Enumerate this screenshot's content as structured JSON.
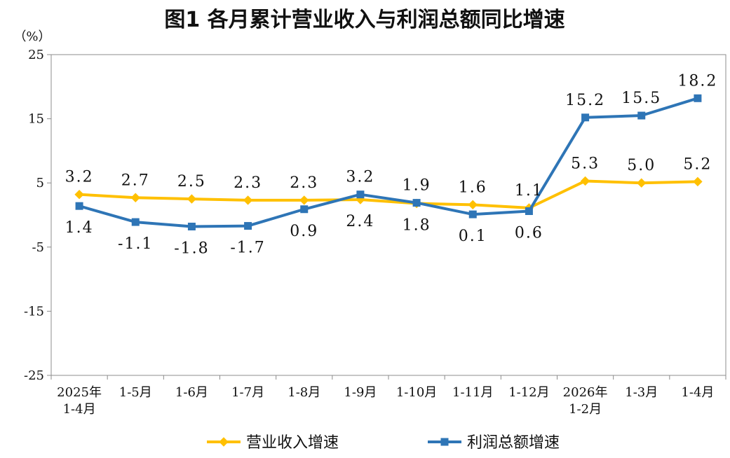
{
  "chart_data": {
    "type": "line",
    "title": "图1  各月累计营业收入与利润总额同比增速",
    "y_unit": "（%）",
    "ylim": [
      -25,
      25
    ],
    "y_ticks": [
      "25",
      "15",
      "5",
      "-5",
      "-15",
      "-25"
    ],
    "y_tick_values": [
      25,
      15,
      5,
      -5,
      -15,
      -25
    ],
    "categories": [
      [
        "2025年",
        "1-4月"
      ],
      [
        "1-5月"
      ],
      [
        "1-6月"
      ],
      [
        "1-7月"
      ],
      [
        "1-8月"
      ],
      [
        "1-9月"
      ],
      [
        "1-10月"
      ],
      [
        "1-11月"
      ],
      [
        "1-12月"
      ],
      [
        "2026年",
        "1-2月"
      ],
      [
        "1-3月"
      ],
      [
        "1-4月"
      ]
    ],
    "series": [
      {
        "name": "营业收入增速",
        "color": "#FFC000",
        "marker": "diamond",
        "values": [
          3.2,
          2.7,
          2.5,
          2.3,
          2.3,
          2.4,
          1.8,
          1.6,
          1.1,
          5.3,
          5.0,
          5.2
        ],
        "labels": [
          "3.2",
          "2.7",
          "2.5",
          "2.3",
          "2.3",
          "2.4",
          "1.8",
          "1.6",
          "1.1",
          "5.3",
          "5.0",
          "5.2"
        ],
        "label_pos": [
          "above",
          "above",
          "above",
          "above",
          "above",
          "below",
          "below",
          "above",
          "above",
          "above",
          "above",
          "above"
        ]
      },
      {
        "name": "利润总额增速",
        "color": "#2E75B6",
        "marker": "square",
        "values": [
          1.4,
          -1.1,
          -1.8,
          -1.7,
          0.9,
          3.2,
          1.9,
          0.1,
          0.6,
          15.2,
          15.5,
          18.2
        ],
        "labels": [
          "1.4",
          "-1.1",
          "-1.8",
          "-1.7",
          "0.9",
          "3.2",
          "1.9",
          "0.1",
          "0.6",
          "15.2",
          "15.5",
          "18.2"
        ],
        "label_pos": [
          "below",
          "below",
          "below",
          "below",
          "below",
          "above",
          "above",
          "below",
          "below",
          "above",
          "above",
          "above"
        ]
      }
    ],
    "grid": false,
    "legend": "bottom"
  }
}
